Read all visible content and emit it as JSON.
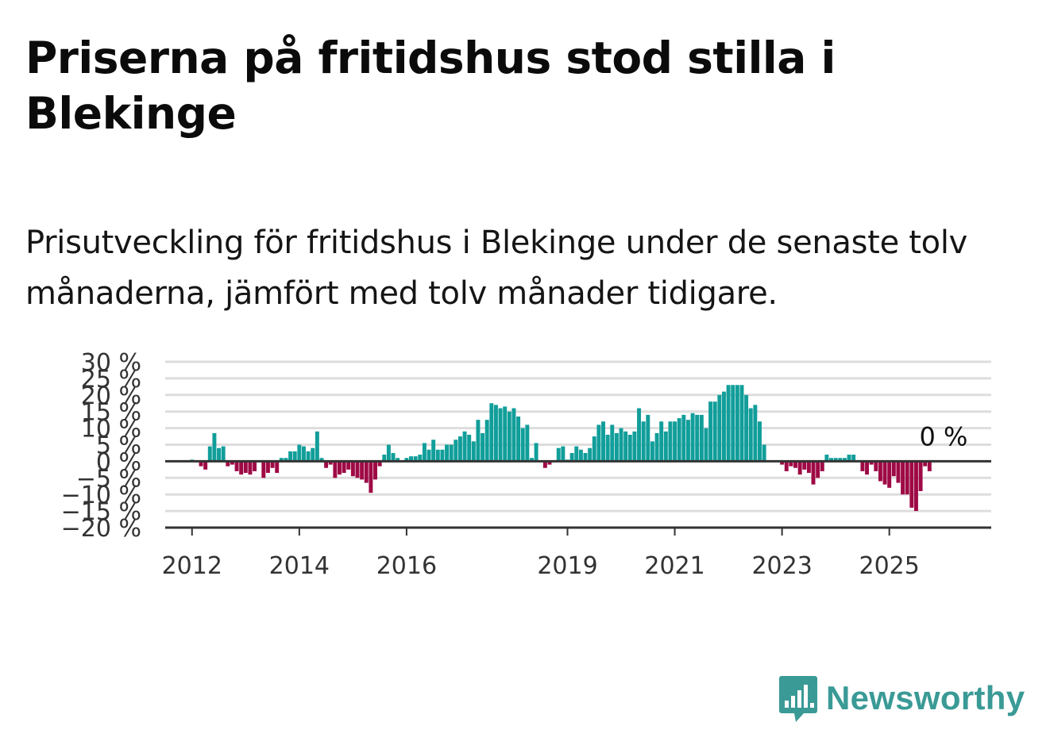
{
  "title": "Priserna på fritidshus stod stilla i Blekinge",
  "subtitle": "Prisutveckling för fritidshus i Blekinge under de senaste tolv månaderna, jämfört med tolv månader tidigare.",
  "brand": {
    "name": "Newsworthy",
    "color": "#3a9a96",
    "icon": "bar-chart-speech-bubble-icon"
  },
  "colors": {
    "positive": "#119e9a",
    "negative": "#9e0a45",
    "grid": "#dddddd",
    "axis": "#333333"
  },
  "chart_data": {
    "type": "bar",
    "title": "Priserna på fritidshus stod stilla i Blekinge",
    "xlabel": "",
    "ylabel": "",
    "ylim": [
      -20,
      30
    ],
    "xlim": [
      2011.5,
      2026.9
    ],
    "grid": true,
    "y_ticks": [
      30,
      25,
      20,
      15,
      10,
      5,
      0,
      -5,
      -10,
      -15,
      -20
    ],
    "y_tick_labels": [
      "30 %",
      "25 %",
      "20 %",
      "15 %",
      "10 %",
      "5 %",
      "0 %",
      "−5 %",
      "−10 %",
      "−15 %",
      "−20 %"
    ],
    "x_ticks": [
      2012,
      2014,
      2016,
      2019,
      2021,
      2023,
      2025
    ],
    "x_tick_labels": [
      "2012",
      "2014",
      "2016",
      "2019",
      "2021",
      "2023",
      "2025"
    ],
    "last_value_label": "0 %",
    "series": [
      {
        "name": "Prisutveckling",
        "x_start": 2012.0,
        "x_step_months": 1,
        "values": [
          0.5,
          0,
          -1.5,
          -2.5,
          4.5,
          8.5,
          4,
          4.5,
          -1.5,
          -1,
          -3,
          -4,
          -3.5,
          -4,
          -3,
          0,
          -5,
          -3.5,
          -2,
          -3.5,
          1,
          1,
          3,
          3,
          5,
          4.5,
          3,
          4,
          9,
          1,
          -2,
          -1,
          -5,
          -4,
          -3.5,
          -2.5,
          -4.5,
          -5,
          -5.5,
          -6.5,
          -9.5,
          -5.5,
          -1.5,
          2,
          5,
          2.5,
          1,
          0,
          1,
          1.5,
          1.5,
          2,
          5.5,
          3.5,
          6.5,
          3.5,
          3.5,
          5,
          5,
          6.5,
          7.5,
          9,
          8,
          6,
          12.5,
          8.5,
          12.5,
          17.5,
          17,
          16,
          16.5,
          15,
          16,
          13.5,
          10,
          11,
          1,
          5.5,
          0,
          -2,
          -1,
          0,
          4,
          4.5,
          0.5,
          2.5,
          4.5,
          3.5,
          2.5,
          4,
          7.5,
          11,
          12,
          8,
          11,
          8.5,
          10,
          9,
          8,
          9,
          16,
          12,
          14,
          6,
          8.5,
          12,
          9,
          12,
          12,
          13,
          14,
          12.5,
          14.5,
          14,
          14,
          10,
          18,
          18,
          20,
          21,
          23,
          23,
          23,
          23,
          20,
          16,
          17,
          12,
          5,
          0,
          0,
          0,
          -1,
          -3,
          -1.5,
          -2,
          -4,
          -2.5,
          -3.5,
          -7,
          -5,
          -3,
          2,
          1,
          1,
          1,
          1,
          2,
          2,
          0,
          -3,
          -4,
          -1,
          -3,
          -6,
          -7,
          -8,
          -4.5,
          -6.5,
          -10,
          -10,
          -14,
          -15,
          -9,
          -1.5,
          -3,
          0
        ]
      }
    ]
  }
}
